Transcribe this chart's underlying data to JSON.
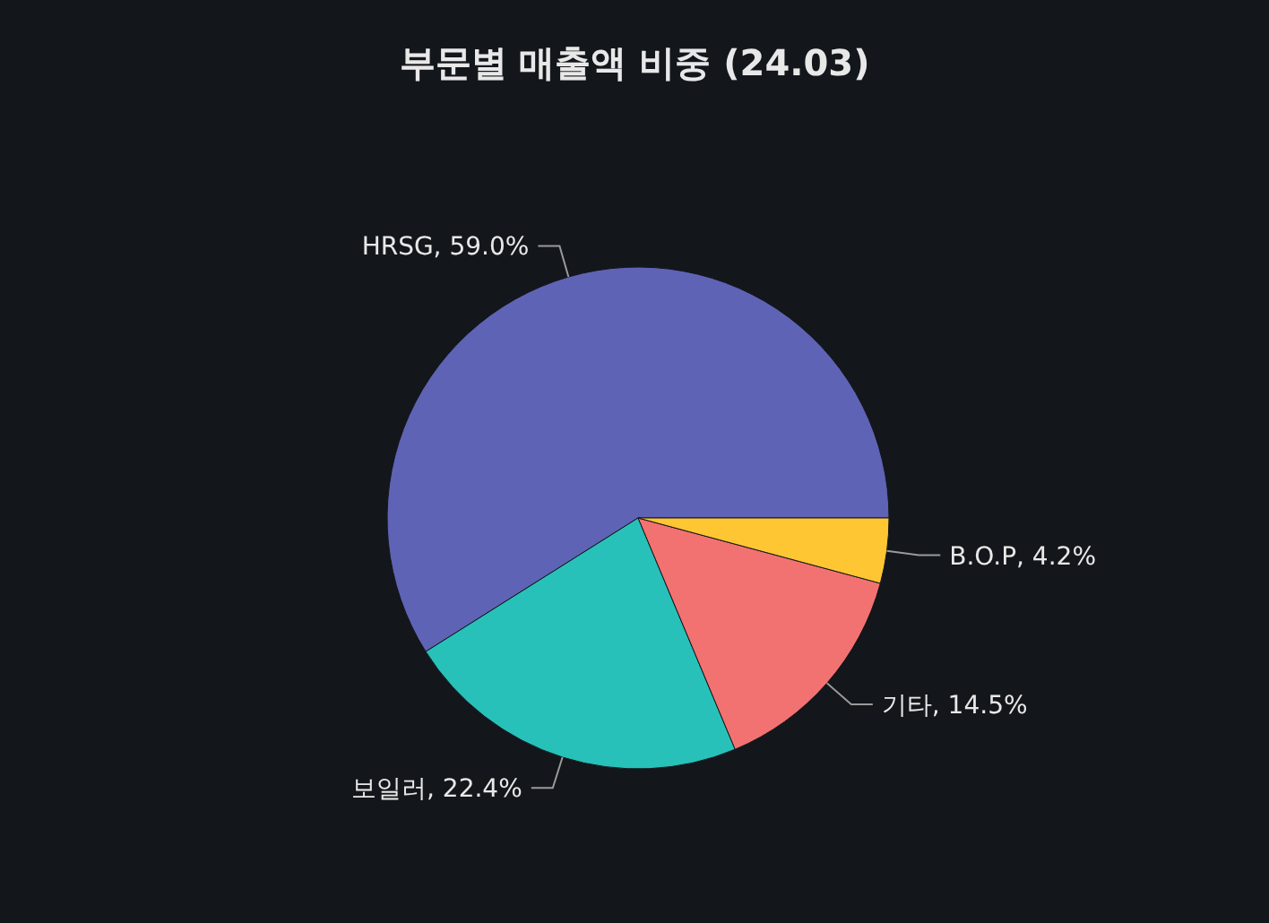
{
  "chart_data": {
    "type": "pie",
    "title": "부문별 매출액 비중 (24.03)",
    "categories": [
      "HRSG",
      "보일러",
      "기타",
      "B.O.P"
    ],
    "values": [
      59.0,
      22.4,
      14.5,
      4.2
    ],
    "value_labels": [
      "59.0%",
      "22.4%",
      "14.5%",
      "4.2%"
    ],
    "colors": [
      "#5f63b5",
      "#27c1b9",
      "#f27271",
      "#ffc634"
    ]
  }
}
